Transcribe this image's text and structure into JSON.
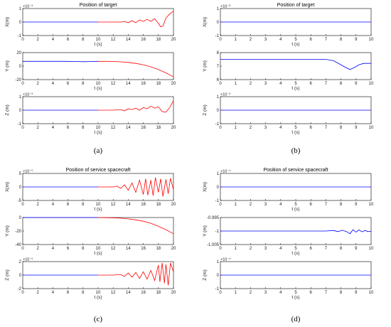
{
  "panels": [
    {
      "label": "(a)",
      "title": "Position of target",
      "subplots": [
        {
          "ylabel": "X(m)",
          "xlabel": "t (s)",
          "exponent": "×10⁻³",
          "xlim": [
            0,
            20
          ],
          "ylim": [
            -1,
            1
          ],
          "xticks": [
            "0",
            "2",
            "4",
            "6",
            "8",
            "10",
            "12",
            "14",
            "16",
            "18",
            "20"
          ],
          "yticks": [
            "1",
            "0",
            "-1"
          ],
          "series": [
            {
              "color": "#0000ff",
              "x": [
                0,
                10
              ],
              "y": [
                0,
                0
              ]
            },
            {
              "color": "#ff0000",
              "x": [
                10,
                12,
                13,
                13.5,
                14,
                14.5,
                15,
                15.5,
                16,
                16.5,
                17,
                17.5,
                18,
                18.3,
                18.6,
                19,
                19.5,
                20
              ],
              "y": [
                0,
                0,
                0,
                0.05,
                -0.05,
                0.1,
                -0.05,
                0.15,
                0.05,
                0.2,
                0.05,
                0.25,
                -0.1,
                -0.35,
                -0.3,
                0.3,
                0.6,
                0.8
              ]
            }
          ]
        },
        {
          "ylabel": "Y (m)",
          "xlabel": "t (s)",
          "exponent": "",
          "xlim": [
            0,
            20
          ],
          "ylim": [
            -20,
            20
          ],
          "xticks": [
            "0",
            "2",
            "4",
            "6",
            "8",
            "10",
            "12",
            "14",
            "16",
            "18",
            "20"
          ],
          "yticks": [
            "20",
            "0",
            "-20"
          ],
          "series": [
            {
              "color": "#0000ff",
              "x": [
                0,
                2,
                4,
                6,
                7,
                8,
                9,
                10
              ],
              "y": [
                7,
                7,
                7,
                7,
                6.8,
                6.5,
                6.7,
                7
              ]
            },
            {
              "color": "#ff0000",
              "x": [
                10,
                11,
                12,
                13,
                14,
                15,
                16,
                17,
                18,
                19,
                20
              ],
              "y": [
                7,
                7,
                6.8,
                6.3,
                5.5,
                4,
                2,
                -1,
                -5,
                -10,
                -16
              ]
            }
          ]
        },
        {
          "ylabel": "Z (m)",
          "xlabel": "t (s)",
          "exponent": "×10⁻³",
          "xlim": [
            0,
            20
          ],
          "ylim": [
            -1,
            1
          ],
          "xticks": [
            "0",
            "2",
            "4",
            "6",
            "8",
            "10",
            "12",
            "14",
            "16",
            "18",
            "20"
          ],
          "yticks": [
            "1",
            "0",
            "-1"
          ],
          "series": [
            {
              "color": "#0000ff",
              "x": [
                0,
                10
              ],
              "y": [
                0,
                0
              ]
            },
            {
              "color": "#ff0000",
              "x": [
                10,
                12,
                13,
                13.5,
                14,
                14.5,
                15,
                15.5,
                16,
                16.5,
                17,
                17.5,
                18,
                18.5,
                19,
                19.5,
                20
              ],
              "y": [
                0,
                0,
                0.05,
                -0.05,
                0.1,
                0.05,
                0.15,
                0,
                0.2,
                0.1,
                0.3,
                0.15,
                0.25,
                -0.1,
                -0.15,
                0.2,
                0.7
              ]
            }
          ]
        }
      ]
    },
    {
      "label": "(b)",
      "title": "Position of target",
      "subplots": [
        {
          "ylabel": "X(m)",
          "xlabel": "t (s)",
          "exponent": "×10⁻³",
          "xlim": [
            0,
            10
          ],
          "ylim": [
            -1,
            1
          ],
          "xticks": [
            "0",
            "1",
            "2",
            "3",
            "4",
            "5",
            "6",
            "7",
            "8",
            "9",
            "10"
          ],
          "yticks": [
            "1",
            "0",
            "-1"
          ],
          "series": [
            {
              "color": "#0000ff",
              "x": [
                0,
                10
              ],
              "y": [
                0,
                0
              ]
            }
          ]
        },
        {
          "ylabel": "Y (m)",
          "xlabel": "t (s)",
          "exponent": "",
          "xlim": [
            0,
            10
          ],
          "ylim": [
            6,
            8
          ],
          "xticks": [
            "0",
            "1",
            "2",
            "3",
            "4",
            "5",
            "6",
            "7",
            "8",
            "9",
            "10"
          ],
          "yticks": [
            "8",
            "7",
            "6"
          ],
          "series": [
            {
              "color": "#0000ff",
              "x": [
                0,
                6,
                7,
                7.5,
                8,
                8.3,
                8.6,
                8.9,
                9.2,
                9.5,
                10
              ],
              "y": [
                7.5,
                7.5,
                7.5,
                7.4,
                7.1,
                6.9,
                6.75,
                6.9,
                7.1,
                7.2,
                7.2
              ]
            }
          ]
        },
        {
          "ylabel": "Z (m)",
          "xlabel": "t (s)",
          "exponent": "×10⁻³",
          "xlim": [
            0,
            10
          ],
          "ylim": [
            -1,
            1
          ],
          "xticks": [
            "0",
            "1",
            "2",
            "3",
            "4",
            "5",
            "6",
            "7",
            "8",
            "9",
            "10"
          ],
          "yticks": [
            "1",
            "0",
            "-1"
          ],
          "series": [
            {
              "color": "#0000ff",
              "x": [
                0,
                10
              ],
              "y": [
                0,
                0
              ]
            }
          ]
        }
      ]
    },
    {
      "label": "(c)",
      "title": "Position of service spacecraft",
      "subplots": [
        {
          "ylabel": "X(m)",
          "xlabel": "t (s)",
          "exponent": "×10⁻⁵",
          "xlim": [
            0,
            20
          ],
          "ylim": [
            -5,
            5
          ],
          "xticks": [
            "0",
            "2",
            "4",
            "6",
            "8",
            "10",
            "12",
            "14",
            "16",
            "18",
            "20"
          ],
          "yticks": [
            "5",
            "0",
            "-5"
          ],
          "series": [
            {
              "color": "#0000ff",
              "x": [
                0,
                10
              ],
              "y": [
                0,
                0
              ]
            },
            {
              "color": "#ff0000",
              "x": [
                10,
                12,
                12.5,
                13,
                13.5,
                14,
                14.5,
                15,
                15.5,
                16,
                16.3,
                16.6,
                17,
                17.3,
                17.6,
                18,
                18.3,
                18.6,
                19,
                19.3,
                19.6,
                20
              ],
              "y": [
                0,
                0,
                0.3,
                -0.5,
                0.8,
                -1.2,
                1.5,
                -2,
                2.5,
                -2.8,
                3,
                -3,
                2.5,
                -3.2,
                3.5,
                -2,
                3,
                -3.5,
                2.8,
                -2.5,
                3.2,
                -1
              ]
            }
          ]
        },
        {
          "ylabel": "Y (m)",
          "xlabel": "t (s)",
          "exponent": "",
          "xlim": [
            0,
            20
          ],
          "ylim": [
            -40,
            0
          ],
          "xticks": [
            "0",
            "2",
            "4",
            "6",
            "8",
            "10",
            "12",
            "14",
            "16",
            "18",
            "20"
          ],
          "yticks": [
            "0",
            "-20",
            "-40"
          ],
          "series": [
            {
              "color": "#0000ff",
              "x": [
                0,
                10
              ],
              "y": [
                0,
                0
              ]
            },
            {
              "color": "#ff0000",
              "x": [
                10,
                11,
                12,
                13,
                14,
                15,
                16,
                17,
                18,
                19,
                20
              ],
              "y": [
                0,
                -0.2,
                -0.5,
                -1,
                -2,
                -3.5,
                -5.5,
                -8.5,
                -13,
                -18,
                -24
              ]
            }
          ]
        },
        {
          "ylabel": "Z (m)",
          "xlabel": "t (s)",
          "exponent": "×10⁻⁵",
          "xlim": [
            0,
            20
          ],
          "ylim": [
            -2,
            2
          ],
          "xticks": [
            "0",
            "2",
            "4",
            "6",
            "8",
            "10",
            "12",
            "14",
            "16",
            "18",
            "20"
          ],
          "yticks": [
            "2",
            "0",
            "-2"
          ],
          "series": [
            {
              "color": "#0000ff",
              "x": [
                0,
                10
              ],
              "y": [
                0,
                0
              ]
            },
            {
              "color": "#ff0000",
              "x": [
                10,
                12,
                13,
                13.5,
                14,
                14.5,
                15,
                15.5,
                16,
                16.5,
                17,
                17.5,
                18,
                18.2,
                18.5,
                18.8,
                19,
                19.3,
                19.6,
                20
              ],
              "y": [
                0,
                0,
                0.1,
                -0.2,
                0.3,
                -0.3,
                0.4,
                -0.5,
                0.5,
                -0.6,
                0.7,
                -0.8,
                1.5,
                -1,
                1.8,
                -1.2,
                1.6,
                -1.5,
                1.8,
                0.5
              ]
            }
          ]
        }
      ]
    },
    {
      "label": "(d)",
      "title": "Position of service spacecraft",
      "subplots": [
        {
          "ylabel": "X(m)",
          "xlabel": "t (s)",
          "exponent": "×10⁻⁴",
          "xlim": [
            0,
            10
          ],
          "ylim": [
            -1,
            1
          ],
          "xticks": [
            "0",
            "1",
            "2",
            "3",
            "4",
            "5",
            "6",
            "7",
            "8",
            "9",
            "10"
          ],
          "yticks": [
            "1",
            "0",
            "-1"
          ],
          "series": [
            {
              "color": "#0000ff",
              "x": [
                0,
                10
              ],
              "y": [
                0,
                0
              ]
            }
          ]
        },
        {
          "ylabel": "Y (m)",
          "xlabel": "t (s)",
          "exponent": "",
          "xlim": [
            0,
            10
          ],
          "ylim": [
            -1.005,
            -0.995
          ],
          "xticks": [
            "0",
            "1",
            "2",
            "3",
            "4",
            "5",
            "6",
            "7",
            "8",
            "9",
            "10"
          ],
          "yticks": [
            "-0.995",
            "-1",
            "-1.005"
          ],
          "series": [
            {
              "color": "#0000ff",
              "x": [
                0,
                6,
                7,
                7.5,
                7.8,
                8.1,
                8.4,
                8.6,
                8.8,
                9,
                9.2,
                9.4,
                9.6,
                9.8,
                10
              ],
              "y": [
                -1,
                -1,
                -1,
                -0.9998,
                -1.0002,
                -0.9997,
                -1.0003,
                -1.001,
                -0.9995,
                -1.0004,
                -0.9996,
                -1.0003,
                -0.9998,
                -1.0002,
                -1.0001
              ]
            }
          ]
        },
        {
          "ylabel": "Z (m)",
          "xlabel": "t (s)",
          "exponent": "×10⁻⁴",
          "xlim": [
            0,
            10
          ],
          "ylim": [
            -1,
            1
          ],
          "xticks": [
            "0",
            "1",
            "2",
            "3",
            "4",
            "5",
            "6",
            "7",
            "8",
            "9",
            "10"
          ],
          "yticks": [
            "1",
            "0",
            "-1"
          ],
          "series": [
            {
              "color": "#0000ff",
              "x": [
                0,
                10
              ],
              "y": [
                0,
                0
              ]
            }
          ]
        }
      ]
    }
  ],
  "chart_data": [
    {
      "type": "line",
      "title": "Position of target",
      "panel": "(a)",
      "x_range": [
        0,
        20
      ],
      "subplots": [
        {
          "ylabel": "X(m)",
          "scale": "1e-3",
          "ylim": [
            -1,
            1
          ]
        },
        {
          "ylabel": "Y (m)",
          "ylim": [
            -20,
            20
          ]
        },
        {
          "ylabel": "Z (m)",
          "scale": "1e-3",
          "ylim": [
            -1,
            1
          ]
        }
      ],
      "xlabel": "t (s)",
      "series_colors": [
        "#0000ff",
        "#ff0000"
      ]
    },
    {
      "type": "line",
      "title": "Position of target",
      "panel": "(b)",
      "x_range": [
        0,
        10
      ],
      "subplots": [
        {
          "ylabel": "X(m)",
          "scale": "1e-3",
          "ylim": [
            -1,
            1
          ]
        },
        {
          "ylabel": "Y (m)",
          "ylim": [
            6,
            8
          ]
        },
        {
          "ylabel": "Z (m)",
          "scale": "1e-3",
          "ylim": [
            -1,
            1
          ]
        }
      ],
      "xlabel": "t (s)",
      "series_colors": [
        "#0000ff"
      ]
    },
    {
      "type": "line",
      "title": "Position of service spacecraft",
      "panel": "(c)",
      "x_range": [
        0,
        20
      ],
      "subplots": [
        {
          "ylabel": "X(m)",
          "scale": "1e-5",
          "ylim": [
            -5,
            5
          ]
        },
        {
          "ylabel": "Y (m)",
          "ylim": [
            -40,
            0
          ]
        },
        {
          "ylabel": "Z (m)",
          "scale": "1e-5",
          "ylim": [
            -2,
            2
          ]
        }
      ],
      "xlabel": "t (s)",
      "series_colors": [
        "#0000ff",
        "#ff0000"
      ]
    },
    {
      "type": "line",
      "title": "Position of service spacecraft",
      "panel": "(d)",
      "x_range": [
        0,
        10
      ],
      "subplots": [
        {
          "ylabel": "X(m)",
          "scale": "1e-4",
          "ylim": [
            -1,
            1
          ]
        },
        {
          "ylabel": "Y (m)",
          "ylim": [
            -1.005,
            -0.995
          ]
        },
        {
          "ylabel": "Z (m)",
          "scale": "1e-4",
          "ylim": [
            -1,
            1
          ]
        }
      ],
      "xlabel": "t (s)",
      "series_colors": [
        "#0000ff"
      ]
    }
  ]
}
